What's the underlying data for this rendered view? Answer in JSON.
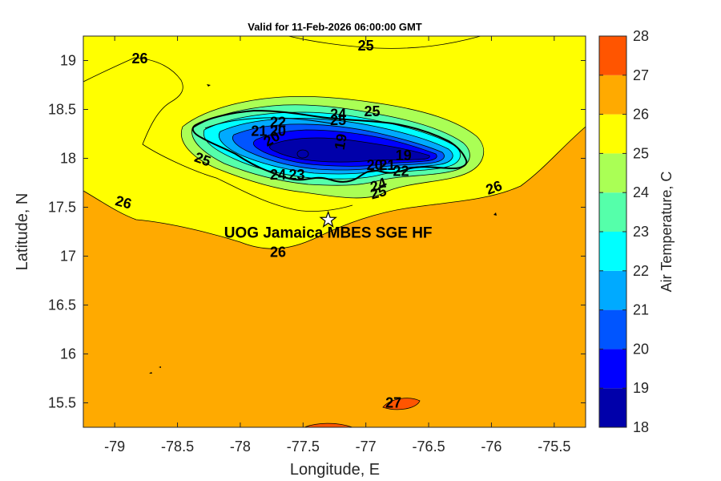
{
  "chart_data": {
    "type": "heatmap",
    "title": "Valid for 11-Feb-2026 06:00:00 GMT",
    "xlabel": "Longitude, E",
    "ylabel": "Latitude, N",
    "xlim": [
      -79.25,
      -75.25
    ],
    "ylim": [
      15.25,
      19.25
    ],
    "x_ticks": [
      -79,
      -78.5,
      -78,
      -77.5,
      -77,
      -76.5,
      -76,
      -75.5
    ],
    "y_ticks": [
      19,
      18.5,
      18,
      17.5,
      17,
      16.5,
      16,
      15.5
    ],
    "x_tick_labels": [
      "-79",
      "-78.5",
      "-78",
      "-77.5",
      "-77",
      "-76.5",
      "-76",
      "-75.5"
    ],
    "y_tick_labels": [
      "19",
      "18.5",
      "18",
      "17.5",
      "17",
      "16.5",
      "16",
      "15.5"
    ],
    "colorbar": {
      "label": "Air Temperature, C",
      "levels": [
        18,
        19,
        20,
        21,
        22,
        23,
        24,
        25,
        26,
        27,
        28
      ],
      "tick_labels": [
        "18",
        "19",
        "20",
        "21",
        "22",
        "23",
        "24",
        "25",
        "26",
        "27",
        "28"
      ],
      "colors": [
        "#0000aa",
        "#0000ff",
        "#0055ff",
        "#00aaff",
        "#00ffff",
        "#55ffaa",
        "#aaff55",
        "#ffff00",
        "#ffaa00",
        "#ff5500",
        "#ff0000"
      ]
    },
    "contour_labels": [
      {
        "text": "25",
        "lon": -77.0,
        "lat": 19.15,
        "rot": 0
      },
      {
        "text": "26",
        "lon": -78.8,
        "lat": 19.02,
        "rot": 0
      },
      {
        "text": "24",
        "lon": -77.22,
        "lat": 18.45,
        "rot": 0
      },
      {
        "text": "25",
        "lon": -76.95,
        "lat": 18.48,
        "rot": 0
      },
      {
        "text": "25",
        "lon": -77.22,
        "lat": 18.39,
        "rot": 0
      },
      {
        "text": "22",
        "lon": -77.7,
        "lat": 18.37,
        "rot": 0
      },
      {
        "text": "21",
        "lon": -77.85,
        "lat": 18.28,
        "rot": 0
      },
      {
        "text": "20",
        "lon": -77.7,
        "lat": 18.28,
        "rot": 0
      },
      {
        "text": "20",
        "lon": -77.75,
        "lat": 18.2,
        "rot": -30
      },
      {
        "text": "19",
        "lon": -77.2,
        "lat": 18.17,
        "rot": -80
      },
      {
        "text": "25",
        "lon": -78.3,
        "lat": 17.99,
        "rot": 20
      },
      {
        "text": "19",
        "lon": -76.7,
        "lat": 18.03,
        "rot": 0
      },
      {
        "text": "20",
        "lon": -76.93,
        "lat": 17.93,
        "rot": 0
      },
      {
        "text": "21",
        "lon": -76.83,
        "lat": 17.93,
        "rot": 0
      },
      {
        "text": "22",
        "lon": -76.72,
        "lat": 17.87,
        "rot": 0
      },
      {
        "text": "24",
        "lon": -77.7,
        "lat": 17.83,
        "rot": 0
      },
      {
        "text": "23",
        "lon": -77.55,
        "lat": 17.83,
        "rot": 0
      },
      {
        "text": "24",
        "lon": -76.9,
        "lat": 17.73,
        "rot": -20
      },
      {
        "text": "25",
        "lon": -76.9,
        "lat": 17.65,
        "rot": -15
      },
      {
        "text": "26",
        "lon": -75.98,
        "lat": 17.7,
        "rot": -20
      },
      {
        "text": "26",
        "lon": -78.93,
        "lat": 17.55,
        "rot": 15
      },
      {
        "text": "26",
        "lon": -77.7,
        "lat": 17.04,
        "rot": 0
      },
      {
        "text": "27",
        "lon": -76.78,
        "lat": 15.5,
        "rot": 0
      }
    ],
    "station": {
      "name": "UOG Jamaica MBES SGE HF",
      "lon": -77.3,
      "lat": 17.37
    }
  }
}
